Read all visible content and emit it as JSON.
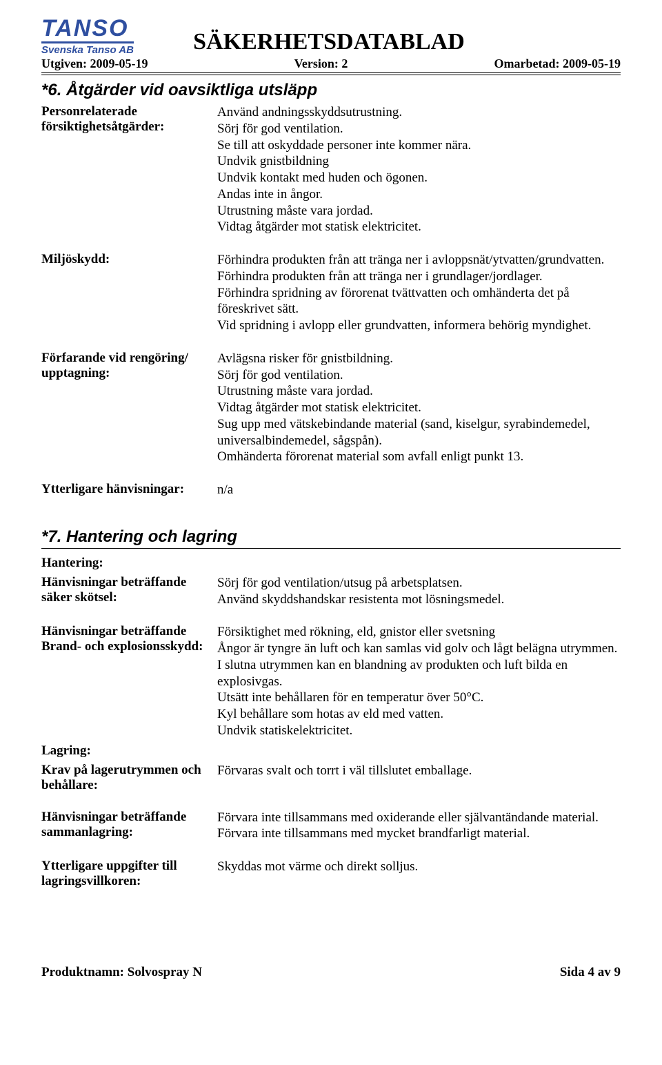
{
  "header": {
    "logo_main": "TANSO",
    "logo_sub": "Svenska Tanso AB",
    "title": "SÄKERHETSDATABLAD",
    "issued_label": "Utgiven:",
    "issued_date": "2009-05-19",
    "version_label": "Version:",
    "version_value": "2",
    "revised_label": "Omarbetad:",
    "revised_date": "2009-05-19"
  },
  "section6": {
    "title": "*6. Åtgärder vid oavsiktliga utsläpp",
    "rows": [
      {
        "label": "Personrelaterade försiktighetsåtgärder:",
        "text": "Använd andningsskyddsutrustning.\nSörj för god ventilation.\nSe till att oskyddade personer inte kommer nära.\nUndvik gnistbildning\nUndvik kontakt med huden och ögonen.\nAndas inte in ångor.\nUtrustning måste vara jordad.\nVidtag åtgärder mot statisk elektricitet."
      },
      {
        "label": "Miljöskydd:",
        "text": "Förhindra produkten från att tränga ner i avloppsnät/ytvatten/grundvatten.\nFörhindra produkten från att tränga ner i grundlager/jordlager.\nFörhindra spridning av förorenat tvättvatten och omhänderta det på föreskrivet sätt.\nVid spridning i avlopp eller grundvatten, informera behörig myndighet."
      },
      {
        "label": "Förfarande vid rengöring/ upptagning:",
        "text": "Avlägsna risker för gnistbildning.\nSörj för god ventilation.\nUtrustning måste vara jordad.\nVidtag åtgärder mot statisk elektricitet.\nSug upp med vätskebindande material (sand, kiselgur, syrabindemedel, universalbindemedel, sågspån).\nOmhänderta förorenat material som avfall enligt punkt 13."
      },
      {
        "label": "Ytterligare hänvisningar:",
        "text": "n/a"
      }
    ]
  },
  "section7": {
    "title": "*7. Hantering och lagring",
    "handling_head": "Hantering:",
    "storage_head": "Lagring:",
    "rows_a": [
      {
        "label": "Hänvisningar beträffande säker skötsel:",
        "text": "Sörj för god ventilation/utsug på arbetsplatsen.\nAnvänd skyddshandskar resistenta mot lösningsmedel."
      },
      {
        "label": "Hänvisningar beträffande Brand- och explosionsskydd:",
        "text": "Försiktighet med rökning, eld, gnistor eller svetsning\nÅngor är tyngre än luft och kan samlas vid golv och lågt belägna utrymmen.\nI slutna utrymmen kan en blandning av produkten och luft bilda en explosivgas.\nUtsätt inte behållaren för en temperatur över 50°C.\nKyl behållare som hotas av eld med vatten.\nUndvik statiskelektricitet."
      }
    ],
    "rows_b": [
      {
        "label": "Krav på lagerutrymmen och behållare:",
        "text": "Förvaras svalt och torrt i väl tillslutet emballage."
      },
      {
        "label": "Hänvisningar beträffande sammanlagring:",
        "text": "Förvara inte tillsammans med oxiderande eller självantändande material.\nFörvara inte tillsammans med  mycket brandfarligt material."
      },
      {
        "label": "Ytterligare uppgifter till lagringsvillkoren:",
        "text": "Skyddas mot värme och direkt solljus."
      }
    ]
  },
  "footer": {
    "product_label": "Produktnamn:",
    "product_name": "Solvospray N",
    "page_label": "Sida",
    "page_current": "4",
    "page_of": "av",
    "page_total": "9"
  }
}
